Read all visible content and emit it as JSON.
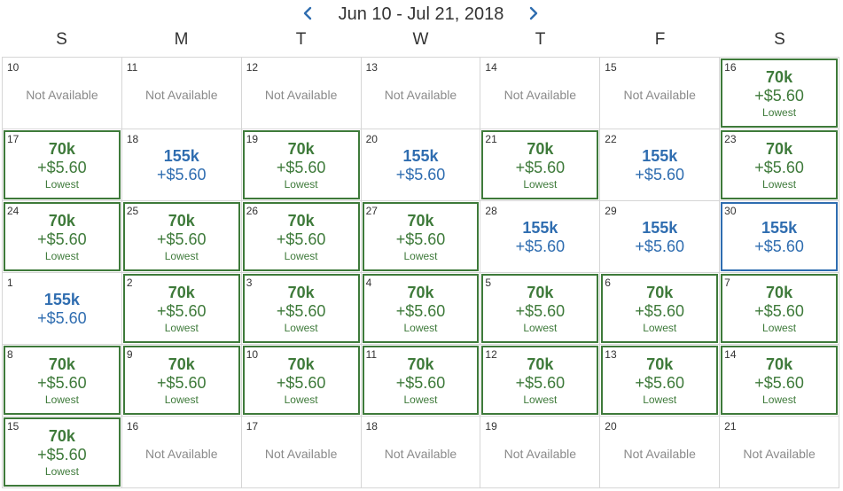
{
  "header": {
    "prev_label": "<",
    "next_label": ">",
    "range": "Jun 10 - Jul 21, 2018"
  },
  "weekdays": [
    "S",
    "M",
    "T",
    "W",
    "T",
    "F",
    "S"
  ],
  "colors": {
    "lowest": "#3e7a3a",
    "regular": "#2f6db0",
    "unavailable": "#8a8a8a",
    "selected_border": "#2f6db0"
  },
  "icons": {
    "prev": "chevron-left-icon",
    "next": "chevron-right-icon"
  },
  "days": [
    {
      "day": "10",
      "status": "na",
      "text": "Not Available"
    },
    {
      "day": "11",
      "status": "na",
      "text": "Not Available"
    },
    {
      "day": "12",
      "status": "na",
      "text": "Not Available"
    },
    {
      "day": "13",
      "status": "na",
      "text": "Not Available"
    },
    {
      "day": "14",
      "status": "na",
      "text": "Not Available"
    },
    {
      "day": "15",
      "status": "na",
      "text": "Not Available"
    },
    {
      "day": "16",
      "status": "lowest",
      "points": "70k",
      "taxes": "+$5.60",
      "label": "Lowest"
    },
    {
      "day": "17",
      "status": "lowest",
      "points": "70k",
      "taxes": "+$5.60",
      "label": "Lowest"
    },
    {
      "day": "18",
      "status": "regular",
      "points": "155k",
      "taxes": "+$5.60"
    },
    {
      "day": "19",
      "status": "lowest",
      "points": "70k",
      "taxes": "+$5.60",
      "label": "Lowest"
    },
    {
      "day": "20",
      "status": "regular",
      "points": "155k",
      "taxes": "+$5.60"
    },
    {
      "day": "21",
      "status": "lowest",
      "points": "70k",
      "taxes": "+$5.60",
      "label": "Lowest"
    },
    {
      "day": "22",
      "status": "regular",
      "points": "155k",
      "taxes": "+$5.60"
    },
    {
      "day": "23",
      "status": "lowest",
      "points": "70k",
      "taxes": "+$5.60",
      "label": "Lowest"
    },
    {
      "day": "24",
      "status": "lowest",
      "points": "70k",
      "taxes": "+$5.60",
      "label": "Lowest"
    },
    {
      "day": "25",
      "status": "lowest",
      "points": "70k",
      "taxes": "+$5.60",
      "label": "Lowest"
    },
    {
      "day": "26",
      "status": "lowest",
      "points": "70k",
      "taxes": "+$5.60",
      "label": "Lowest"
    },
    {
      "day": "27",
      "status": "lowest",
      "points": "70k",
      "taxes": "+$5.60",
      "label": "Lowest"
    },
    {
      "day": "28",
      "status": "regular",
      "points": "155k",
      "taxes": "+$5.60"
    },
    {
      "day": "29",
      "status": "regular",
      "points": "155k",
      "taxes": "+$5.60"
    },
    {
      "day": "30",
      "status": "regular",
      "selected": true,
      "points": "155k",
      "taxes": "+$5.60"
    },
    {
      "day": "1",
      "status": "regular",
      "points": "155k",
      "taxes": "+$5.60"
    },
    {
      "day": "2",
      "status": "lowest",
      "points": "70k",
      "taxes": "+$5.60",
      "label": "Lowest"
    },
    {
      "day": "3",
      "status": "lowest",
      "points": "70k",
      "taxes": "+$5.60",
      "label": "Lowest"
    },
    {
      "day": "4",
      "status": "lowest",
      "points": "70k",
      "taxes": "+$5.60",
      "label": "Lowest"
    },
    {
      "day": "5",
      "status": "lowest",
      "points": "70k",
      "taxes": "+$5.60",
      "label": "Lowest"
    },
    {
      "day": "6",
      "status": "lowest",
      "points": "70k",
      "taxes": "+$5.60",
      "label": "Lowest"
    },
    {
      "day": "7",
      "status": "lowest",
      "points": "70k",
      "taxes": "+$5.60",
      "label": "Lowest"
    },
    {
      "day": "8",
      "status": "lowest",
      "points": "70k",
      "taxes": "+$5.60",
      "label": "Lowest"
    },
    {
      "day": "9",
      "status": "lowest",
      "points": "70k",
      "taxes": "+$5.60",
      "label": "Lowest"
    },
    {
      "day": "10",
      "status": "lowest",
      "points": "70k",
      "taxes": "+$5.60",
      "label": "Lowest"
    },
    {
      "day": "11",
      "status": "lowest",
      "points": "70k",
      "taxes": "+$5.60",
      "label": "Lowest"
    },
    {
      "day": "12",
      "status": "lowest",
      "points": "70k",
      "taxes": "+$5.60",
      "label": "Lowest"
    },
    {
      "day": "13",
      "status": "lowest",
      "points": "70k",
      "taxes": "+$5.60",
      "label": "Lowest"
    },
    {
      "day": "14",
      "status": "lowest",
      "points": "70k",
      "taxes": "+$5.60",
      "label": "Lowest"
    },
    {
      "day": "15",
      "status": "lowest",
      "points": "70k",
      "taxes": "+$5.60",
      "label": "Lowest"
    },
    {
      "day": "16",
      "status": "na",
      "text": "Not Available"
    },
    {
      "day": "17",
      "status": "na",
      "text": "Not Available"
    },
    {
      "day": "18",
      "status": "na",
      "text": "Not Available"
    },
    {
      "day": "19",
      "status": "na",
      "text": "Not Available"
    },
    {
      "day": "20",
      "status": "na",
      "text": "Not Available"
    },
    {
      "day": "21",
      "status": "na",
      "text": "Not Available"
    }
  ]
}
